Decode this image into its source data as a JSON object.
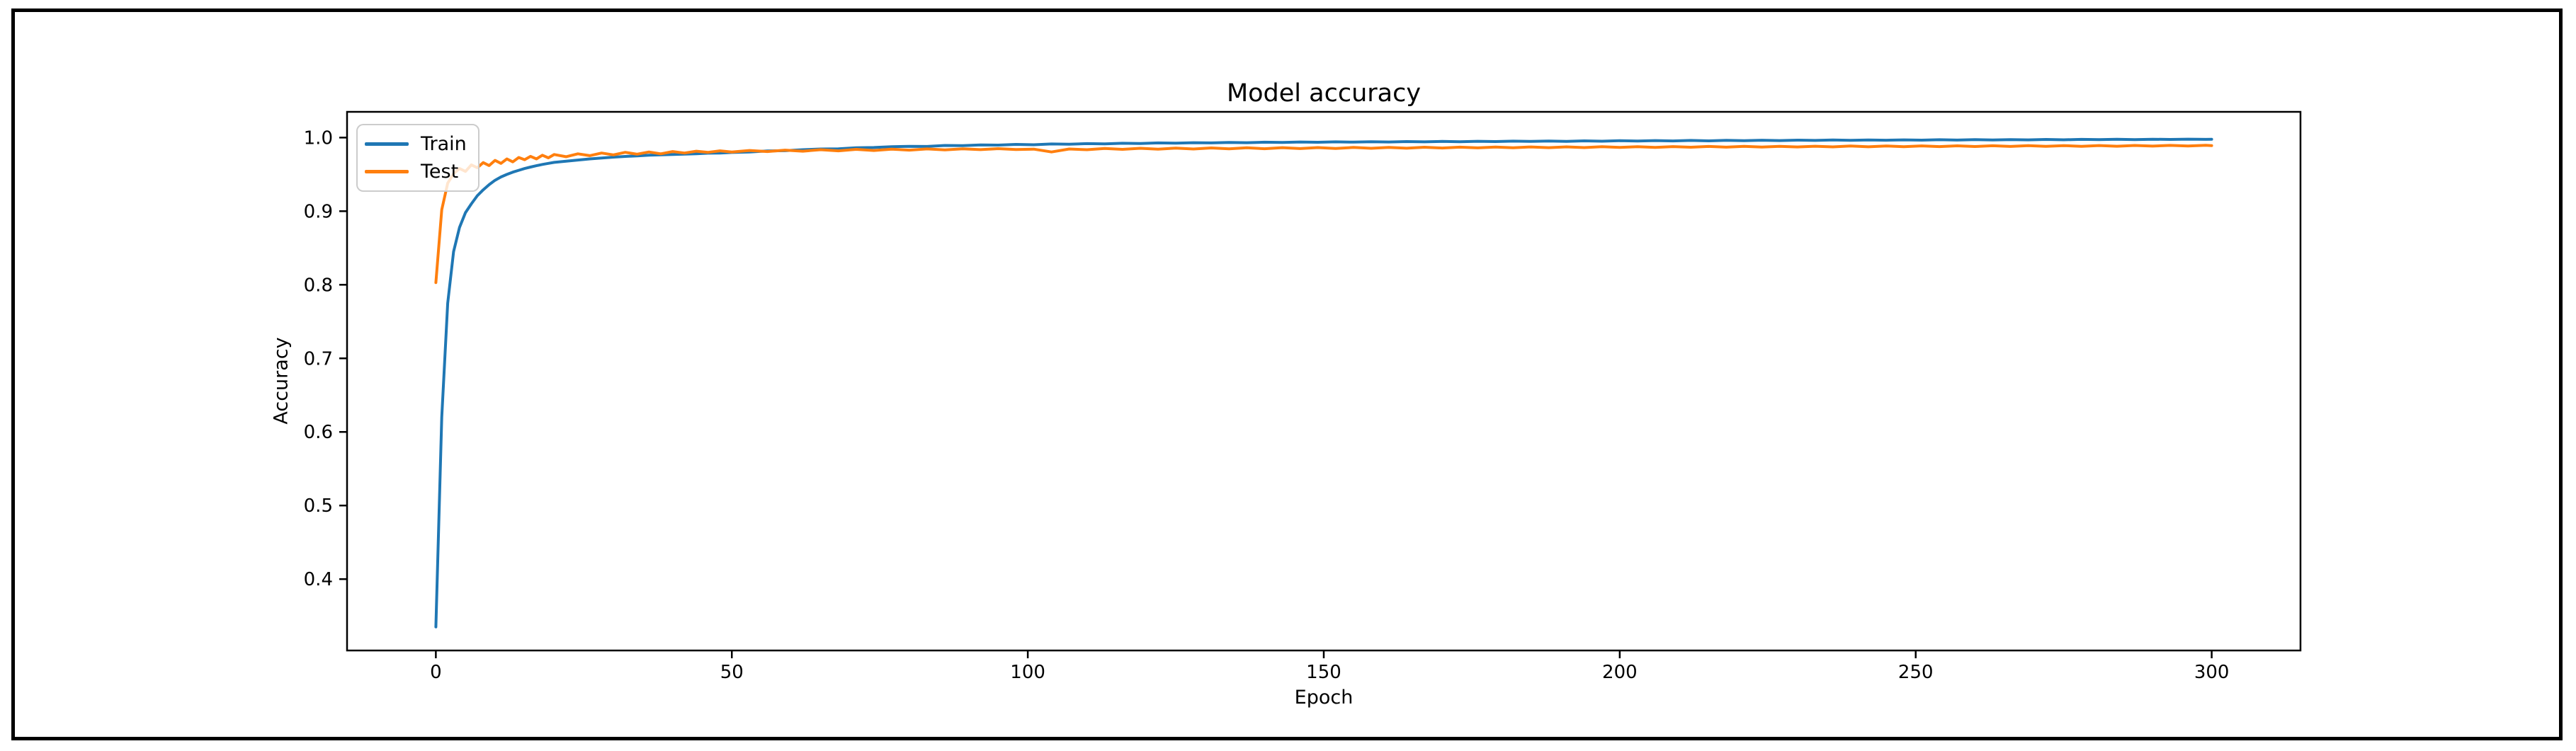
{
  "window": {
    "background": "#ffffff",
    "frame_color": "#000000"
  },
  "chart_data": {
    "type": "line",
    "title": "Model accuracy",
    "xlabel": "Epoch",
    "ylabel": "Accuracy",
    "xlim": [
      -15,
      315
    ],
    "ylim": [
      0.303,
      1.035
    ],
    "grid": false,
    "axis_color": "#000000",
    "xticks": {
      "values": [
        0,
        50,
        100,
        150,
        200,
        250,
        300
      ],
      "labels": [
        "0",
        "50",
        "100",
        "150",
        "200",
        "250",
        "300"
      ]
    },
    "yticks": {
      "values": [
        0.4,
        0.5,
        0.6,
        0.7,
        0.8,
        0.9,
        1.0
      ],
      "labels": [
        "0.4",
        "0.5",
        "0.6",
        "0.7",
        "0.8",
        "0.9",
        "1.0"
      ]
    },
    "legend": {
      "position": "upper left",
      "entries": [
        {
          "label": "Train",
          "color": "#1f77b4"
        },
        {
          "label": "Test",
          "color": "#ff7f0e"
        }
      ]
    },
    "series": [
      {
        "name": "Train",
        "color": "#1f77b4",
        "points": [
          [
            0,
            0.335
          ],
          [
            1,
            0.62
          ],
          [
            2,
            0.775
          ],
          [
            3,
            0.845
          ],
          [
            4,
            0.878
          ],
          [
            5,
            0.898
          ],
          [
            6,
            0.91
          ],
          [
            7,
            0.921
          ],
          [
            8,
            0.929
          ],
          [
            9,
            0.936
          ],
          [
            10,
            0.942
          ],
          [
            11,
            0.9465
          ],
          [
            12,
            0.95
          ],
          [
            13,
            0.953
          ],
          [
            14,
            0.9555
          ],
          [
            15,
            0.958
          ],
          [
            16,
            0.96
          ],
          [
            17,
            0.9618
          ],
          [
            18,
            0.9635
          ],
          [
            19,
            0.965
          ],
          [
            20,
            0.9663
          ],
          [
            22,
            0.968
          ],
          [
            24,
            0.9695
          ],
          [
            26,
            0.971
          ],
          [
            28,
            0.9722
          ],
          [
            30,
            0.9734
          ],
          [
            32,
            0.9744
          ],
          [
            34,
            0.9752
          ],
          [
            36,
            0.976
          ],
          [
            38,
            0.9766
          ],
          [
            40,
            0.977
          ],
          [
            42,
            0.9775
          ],
          [
            44,
            0.978
          ],
          [
            46,
            0.9788
          ],
          [
            48,
            0.979
          ],
          [
            50,
            0.9798
          ],
          [
            53,
            0.9805
          ],
          [
            56,
            0.9818
          ],
          [
            59,
            0.9822
          ],
          [
            62,
            0.9835
          ],
          [
            65,
            0.9845
          ],
          [
            68,
            0.9848
          ],
          [
            71,
            0.9862
          ],
          [
            74,
            0.9865
          ],
          [
            77,
            0.9876
          ],
          [
            80,
            0.9882
          ],
          [
            83,
            0.988
          ],
          [
            86,
            0.9893
          ],
          [
            89,
            0.989
          ],
          [
            92,
            0.99
          ],
          [
            95,
            0.9898
          ],
          [
            98,
            0.9908
          ],
          [
            101,
            0.9903
          ],
          [
            104,
            0.9913
          ],
          [
            107,
            0.991
          ],
          [
            110,
            0.9918
          ],
          [
            113,
            0.9915
          ],
          [
            116,
            0.9923
          ],
          [
            119,
            0.992
          ],
          [
            122,
            0.9928
          ],
          [
            125,
            0.9925
          ],
          [
            128,
            0.9931
          ],
          [
            131,
            0.9928
          ],
          [
            134,
            0.9934
          ],
          [
            137,
            0.9931
          ],
          [
            140,
            0.9937
          ],
          [
            143,
            0.9934
          ],
          [
            146,
            0.994
          ],
          [
            149,
            0.9936
          ],
          [
            152,
            0.9942
          ],
          [
            155,
            0.9938
          ],
          [
            158,
            0.9944
          ],
          [
            161,
            0.994
          ],
          [
            164,
            0.9946
          ],
          [
            167,
            0.9942
          ],
          [
            170,
            0.9948
          ],
          [
            173,
            0.9944
          ],
          [
            176,
            0.995
          ],
          [
            179,
            0.9946
          ],
          [
            182,
            0.9952
          ],
          [
            185,
            0.9948
          ],
          [
            188,
            0.9954
          ],
          [
            191,
            0.9949
          ],
          [
            194,
            0.9956
          ],
          [
            197,
            0.9951
          ],
          [
            200,
            0.9958
          ],
          [
            203,
            0.9953
          ],
          [
            206,
            0.9959
          ],
          [
            209,
            0.9955
          ],
          [
            212,
            0.9961
          ],
          [
            215,
            0.9956
          ],
          [
            218,
            0.9962
          ],
          [
            221,
            0.9958
          ],
          [
            224,
            0.9964
          ],
          [
            227,
            0.9959
          ],
          [
            230,
            0.9965
          ],
          [
            233,
            0.9961
          ],
          [
            236,
            0.9967
          ],
          [
            239,
            0.9962
          ],
          [
            242,
            0.9968
          ],
          [
            245,
            0.9964
          ],
          [
            248,
            0.9969
          ],
          [
            251,
            0.9965
          ],
          [
            254,
            0.9971
          ],
          [
            257,
            0.9966
          ],
          [
            260,
            0.9972
          ],
          [
            263,
            0.9968
          ],
          [
            266,
            0.9973
          ],
          [
            269,
            0.9969
          ],
          [
            272,
            0.9975
          ],
          [
            275,
            0.997
          ],
          [
            278,
            0.9976
          ],
          [
            281,
            0.9972
          ],
          [
            284,
            0.9977
          ],
          [
            287,
            0.9973
          ],
          [
            290,
            0.9978
          ],
          [
            293,
            0.9975
          ],
          [
            296,
            0.9979
          ],
          [
            299,
            0.9976
          ],
          [
            300,
            0.9978
          ]
        ]
      },
      {
        "name": "Test",
        "color": "#ff7f0e",
        "points": [
          [
            0,
            0.803
          ],
          [
            1,
            0.902
          ],
          [
            2,
            0.938
          ],
          [
            3,
            0.951
          ],
          [
            4,
            0.958
          ],
          [
            5,
            0.954
          ],
          [
            6,
            0.963
          ],
          [
            7,
            0.959
          ],
          [
            8,
            0.966
          ],
          [
            9,
            0.962
          ],
          [
            10,
            0.969
          ],
          [
            11,
            0.965
          ],
          [
            12,
            0.971
          ],
          [
            13,
            0.967
          ],
          [
            14,
            0.973
          ],
          [
            15,
            0.97
          ],
          [
            16,
            0.9745
          ],
          [
            17,
            0.971
          ],
          [
            18,
            0.976
          ],
          [
            19,
            0.9725
          ],
          [
            20,
            0.977
          ],
          [
            22,
            0.974
          ],
          [
            24,
            0.978
          ],
          [
            26,
            0.9755
          ],
          [
            28,
            0.979
          ],
          [
            30,
            0.9765
          ],
          [
            32,
            0.98
          ],
          [
            34,
            0.9775
          ],
          [
            36,
            0.9805
          ],
          [
            38,
            0.978
          ],
          [
            40,
            0.981
          ],
          [
            42,
            0.979
          ],
          [
            44,
            0.9815
          ],
          [
            46,
            0.98
          ],
          [
            48,
            0.982
          ],
          [
            50,
            0.9805
          ],
          [
            53,
            0.9825
          ],
          [
            56,
            0.981
          ],
          [
            59,
            0.983
          ],
          [
            62,
            0.9815
          ],
          [
            65,
            0.9835
          ],
          [
            68,
            0.982
          ],
          [
            71,
            0.984
          ],
          [
            74,
            0.9825
          ],
          [
            77,
            0.9843
          ],
          [
            80,
            0.983
          ],
          [
            83,
            0.9846
          ],
          [
            86,
            0.9833
          ],
          [
            89,
            0.9848
          ],
          [
            92,
            0.9836
          ],
          [
            95,
            0.985
          ],
          [
            98,
            0.9838
          ],
          [
            101,
            0.9843
          ],
          [
            104,
            0.9805
          ],
          [
            107,
            0.9845
          ],
          [
            110,
            0.9835
          ],
          [
            113,
            0.9853
          ],
          [
            116,
            0.984
          ],
          [
            119,
            0.9855
          ],
          [
            122,
            0.9843
          ],
          [
            125,
            0.9857
          ],
          [
            128,
            0.9845
          ],
          [
            131,
            0.9859
          ],
          [
            134,
            0.9847
          ],
          [
            137,
            0.9861
          ],
          [
            140,
            0.9849
          ],
          [
            143,
            0.9863
          ],
          [
            146,
            0.9851
          ],
          [
            149,
            0.9864
          ],
          [
            152,
            0.9853
          ],
          [
            155,
            0.9866
          ],
          [
            158,
            0.9855
          ],
          [
            161,
            0.9867
          ],
          [
            164,
            0.9856
          ],
          [
            167,
            0.9869
          ],
          [
            170,
            0.9858
          ],
          [
            173,
            0.987
          ],
          [
            176,
            0.986
          ],
          [
            179,
            0.9872
          ],
          [
            182,
            0.9861
          ],
          [
            185,
            0.9873
          ],
          [
            188,
            0.9863
          ],
          [
            191,
            0.9874
          ],
          [
            194,
            0.9864
          ],
          [
            197,
            0.9876
          ],
          [
            200,
            0.9866
          ],
          [
            203,
            0.9877
          ],
          [
            206,
            0.9867
          ],
          [
            209,
            0.9878
          ],
          [
            212,
            0.9869
          ],
          [
            215,
            0.988
          ],
          [
            218,
            0.987
          ],
          [
            221,
            0.9881
          ],
          [
            224,
            0.9871
          ],
          [
            227,
            0.9882
          ],
          [
            230,
            0.9873
          ],
          [
            233,
            0.9883
          ],
          [
            236,
            0.9874
          ],
          [
            239,
            0.9885
          ],
          [
            242,
            0.9875
          ],
          [
            245,
            0.9886
          ],
          [
            248,
            0.9877
          ],
          [
            251,
            0.9887
          ],
          [
            254,
            0.9878
          ],
          [
            257,
            0.9888
          ],
          [
            260,
            0.9879
          ],
          [
            263,
            0.9889
          ],
          [
            266,
            0.988
          ],
          [
            269,
            0.989
          ],
          [
            272,
            0.9881
          ],
          [
            275,
            0.9891
          ],
          [
            278,
            0.9882
          ],
          [
            281,
            0.9892
          ],
          [
            284,
            0.9883
          ],
          [
            287,
            0.9893
          ],
          [
            290,
            0.9884
          ],
          [
            293,
            0.9894
          ],
          [
            296,
            0.9885
          ],
          [
            299,
            0.9895
          ],
          [
            300,
            0.989
          ]
        ]
      }
    ]
  }
}
